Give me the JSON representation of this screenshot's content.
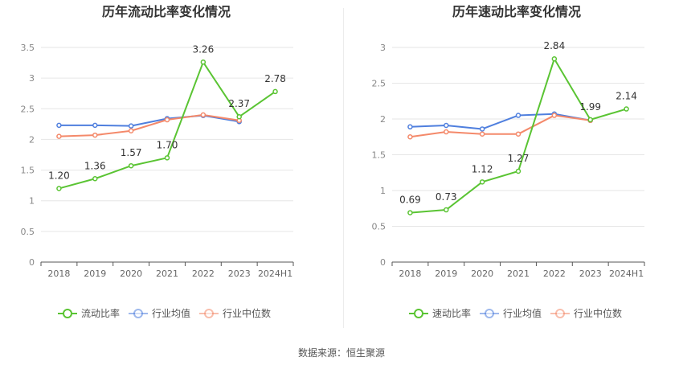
{
  "source": {
    "label": "数据来源：",
    "value": "恒生聚源"
  },
  "colors": {
    "company": "#5ac433",
    "industry_avg": "#4f7fde",
    "industry_median": "#f4896a"
  },
  "chart_data": [
    {
      "type": "line",
      "title": "历年流动比率变化情况",
      "categories": [
        "2018",
        "2019",
        "2020",
        "2021",
        "2022",
        "2023",
        "2024H1"
      ],
      "ylim": [
        0,
        3.5
      ],
      "yticks": [
        "0",
        "0.5",
        "1",
        "1.5",
        "2",
        "2.5",
        "3",
        "3.5"
      ],
      "grid": true,
      "legend_position": "bottom",
      "series": [
        {
          "name": "流动比率",
          "values": [
            1.2,
            1.36,
            1.57,
            1.7,
            3.26,
            2.37,
            2.78
          ],
          "labels": [
            "1.20",
            "1.36",
            "1.57",
            "1.70",
            "3.26",
            "2.37",
            "2.78"
          ]
        },
        {
          "name": "行业均值",
          "values": [
            2.23,
            2.23,
            2.22,
            2.34,
            2.39,
            2.29,
            null
          ]
        },
        {
          "name": "行业中位数",
          "values": [
            2.05,
            2.07,
            2.14,
            2.32,
            2.4,
            2.31,
            null
          ]
        }
      ]
    },
    {
      "type": "line",
      "title": "历年速动比率变化情况",
      "categories": [
        "2018",
        "2019",
        "2020",
        "2021",
        "2022",
        "2023",
        "2024H1"
      ],
      "ylim": [
        0,
        3
      ],
      "yticks": [
        "0",
        "0.5",
        "1",
        "1.5",
        "2",
        "2.5",
        "3"
      ],
      "grid": true,
      "legend_position": "bottom",
      "series": [
        {
          "name": "速动比率",
          "values": [
            0.69,
            0.73,
            1.12,
            1.27,
            2.84,
            1.99,
            2.14
          ],
          "labels": [
            "0.69",
            "0.73",
            "1.12",
            "1.27",
            "2.84",
            "1.99",
            "2.14"
          ]
        },
        {
          "name": "行业均值",
          "values": [
            1.89,
            1.91,
            1.86,
            2.05,
            2.07,
            1.98,
            null
          ]
        },
        {
          "name": "行业中位数",
          "values": [
            1.75,
            1.82,
            1.79,
            1.79,
            2.05,
            1.98,
            null
          ]
        }
      ]
    }
  ]
}
